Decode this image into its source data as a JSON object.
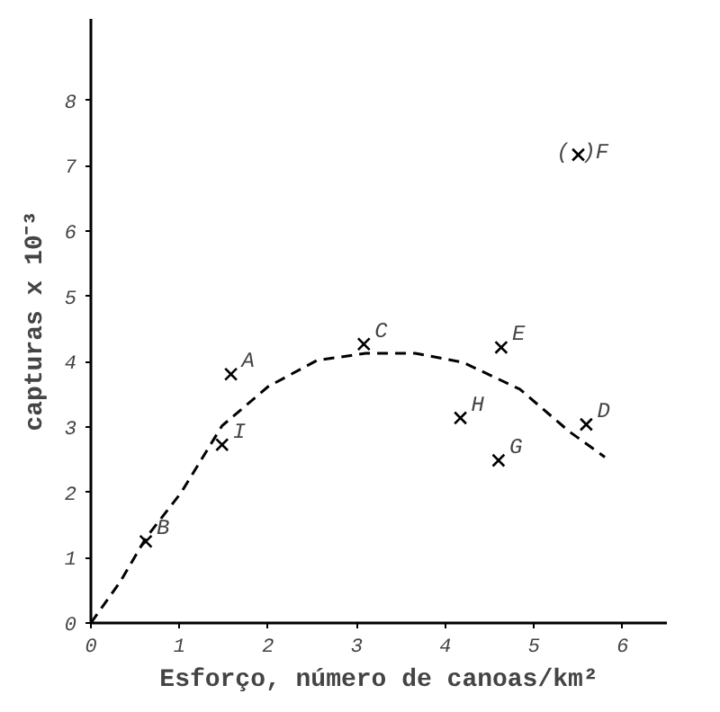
{
  "chart_data": {
    "type": "scatter",
    "xlabel": "Esforço, número de canoas/km²",
    "ylabel": "capturas x 10⁻³",
    "xlim": [
      0,
      6.5
    ],
    "ylim": [
      0,
      9.25
    ],
    "xticks": [
      0,
      1,
      2,
      3,
      4,
      5,
      6
    ],
    "yticks": [
      0,
      1,
      2,
      3,
      4,
      5,
      6,
      7,
      8
    ],
    "grid": false,
    "series": [
      {
        "marker": "cross",
        "color": "#000000",
        "x": [
          1.58,
          0.62,
          3.08,
          5.59,
          4.63,
          5.5,
          4.6,
          4.17,
          1.48
        ],
        "values": [
          3.81,
          1.25,
          4.27,
          3.04,
          4.22,
          7.17,
          2.49,
          3.14,
          2.73
        ]
      },
      {
        "type": "line",
        "line_style": "dashed",
        "color": "#000000",
        "x": [
          0,
          0.33,
          0.62,
          1.02,
          1.48,
          2.0,
          2.55,
          3.1,
          3.66,
          4.2,
          4.84,
          5.4,
          5.8
        ],
        "values": [
          0,
          0.63,
          1.3,
          2.0,
          3.02,
          3.62,
          4.02,
          4.13,
          4.13,
          3.99,
          3.58,
          2.93,
          2.54
        ]
      }
    ],
    "annotations": [
      {
        "text": "A",
        "x": 1.58,
        "y": 3.81
      },
      {
        "text": "B",
        "x": 0.62,
        "y": 1.25
      },
      {
        "text": "C",
        "x": 3.08,
        "y": 4.27
      },
      {
        "text": "D",
        "x": 5.59,
        "y": 3.04
      },
      {
        "text": "E",
        "x": 4.63,
        "y": 4.22
      },
      {
        "text": "(  )F",
        "x": 5.5,
        "y": 7.17
      },
      {
        "text": "G",
        "x": 4.6,
        "y": 2.49
      },
      {
        "text": "H",
        "x": 4.17,
        "y": 3.14
      },
      {
        "text": "I",
        "x": 1.48,
        "y": 2.73
      }
    ]
  }
}
